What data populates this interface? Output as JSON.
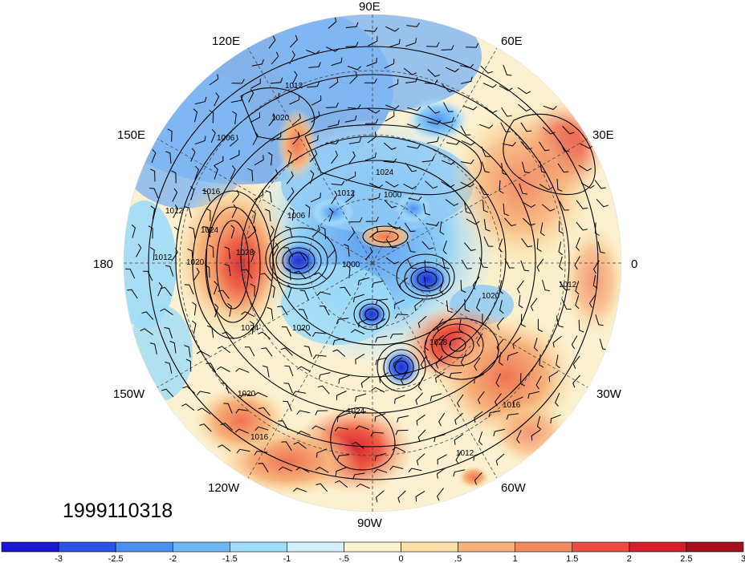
{
  "map": {
    "timestamp": "1999110318",
    "longitude_labels": [
      {
        "id": "90e",
        "text": "90E"
      },
      {
        "id": "60e",
        "text": "60E"
      },
      {
        "id": "120e",
        "text": "120E"
      },
      {
        "id": "150e",
        "text": "150E"
      },
      {
        "id": "30e",
        "text": "30E"
      },
      {
        "id": "180",
        "text": "180"
      },
      {
        "id": "0",
        "text": "0"
      },
      {
        "id": "150w",
        "text": "150W"
      },
      {
        "id": "30w",
        "text": "30W"
      },
      {
        "id": "120w",
        "text": "120W"
      },
      {
        "id": "60w",
        "text": "60W"
      },
      {
        "id": "90w",
        "text": "90W"
      }
    ],
    "isobar_labels": [
      "1012",
      "1020",
      "1006",
      "1024",
      "1012",
      "1000",
      "1016",
      "1012",
      "1024",
      "1020",
      "1028",
      "1006",
      "1000",
      "1020",
      "1012",
      "1028",
      "1024",
      "1020",
      "1016",
      "1012",
      "1016",
      "1024",
      "1020",
      "1012"
    ]
  },
  "colorbar": {
    "colors": [
      "#1a18d3",
      "#2b53e6",
      "#4a8ff2",
      "#6fb6f5",
      "#9fdcf8",
      "#d2f1fc",
      "#fbf3d2",
      "#fbe1a6",
      "#f7b27a",
      "#f38a5e",
      "#ea4d44",
      "#d21f2b",
      "#a4121d"
    ],
    "tick_labels": [
      "-3",
      "-2.5",
      "-2",
      "-1.5",
      "-1",
      "-.5",
      "0",
      ".5",
      "1",
      "1.5",
      "2",
      "2.5",
      "3"
    ]
  }
}
